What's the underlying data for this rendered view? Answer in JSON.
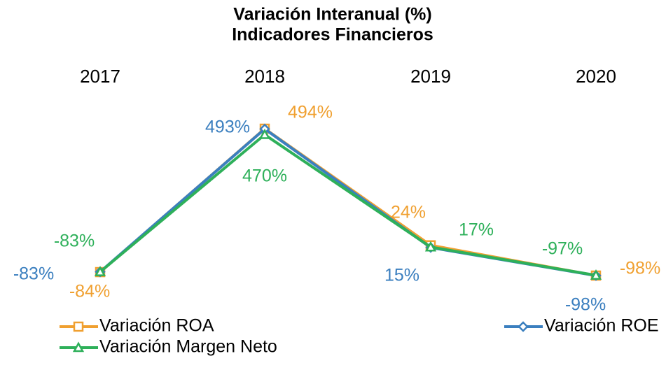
{
  "chart_data": {
    "type": "line",
    "title": "Variación Interanual (%)",
    "subtitle": "Indicadores Financieros",
    "categories": [
      "2017",
      "2018",
      "2019",
      "2020"
    ],
    "series": [
      {
        "name": "Variación ROA",
        "color": "#f0a030",
        "marker": "square",
        "values": [
          -84,
          494,
          24,
          -98
        ],
        "value_labels": [
          "-84%",
          "494%",
          "24%",
          "-98%"
        ]
      },
      {
        "name": "Variación ROE",
        "color": "#3b7fbf",
        "marker": "diamond",
        "values": [
          -83,
          493,
          15,
          -98
        ],
        "value_labels": [
          "-83%",
          "493%",
          "15%",
          "-98%"
        ]
      },
      {
        "name": "Variación Margen Neto",
        "color": "#2eb05a",
        "marker": "triangle",
        "values": [
          -83,
          470,
          17,
          -97
        ],
        "value_labels": [
          "-83%",
          "470%",
          "17%",
          "-97%"
        ]
      }
    ]
  }
}
